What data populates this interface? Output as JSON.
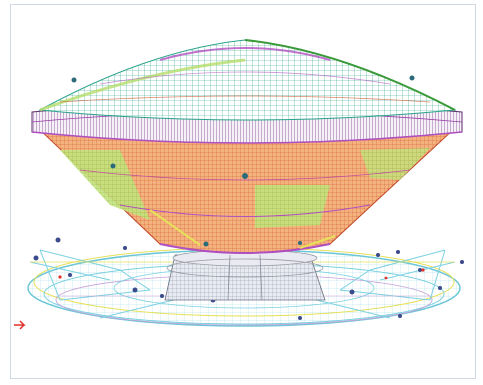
{
  "colors": {
    "frame_border": "#cfd8e3",
    "background": "#ffffff",
    "dome_mesh": "#2aa38a",
    "dome_highlight": "#b04fc0",
    "rim_mesh": "#6a2f7a",
    "shell_fill": "#f2a46b",
    "shell_mesh": "#d0552f",
    "shell_patch": "#b7dd6d",
    "base_mesh": "#9a9aa5",
    "platform_mesh": "#7ad0e0",
    "platform_accent": "#e6e05a",
    "axis_marker": "#e0302a"
  },
  "icons": [
    "axis-marker-icon"
  ]
}
